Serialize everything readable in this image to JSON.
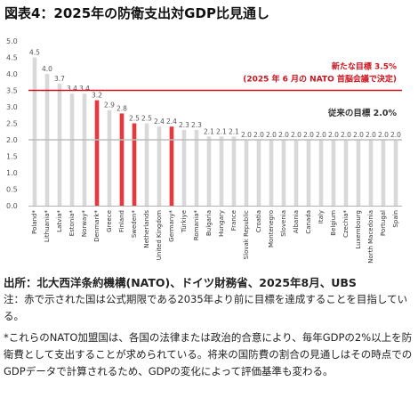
{
  "title": "図表4：2025年の防衛支出対GDP比見通し",
  "chart_data": {
    "type": "bar",
    "ylim": [
      0,
      5
    ],
    "yticks": [
      0.0,
      0.5,
      1.0,
      1.5,
      2.0,
      2.5,
      3.0,
      3.5,
      4.0,
      4.5,
      5.0
    ],
    "grid": false,
    "categories": [
      "Poland*",
      "Lithuania*",
      "Latvia*",
      "Estonia*",
      "Norway*",
      "Denmark*",
      "Greece",
      "Finland",
      "Sweden*",
      "Netherlands",
      "United Kingdom",
      "Germany*",
      "Türkiye",
      "Romania*",
      "Bulgaria",
      "Hungary",
      "France",
      "Slovak Republic",
      "Croatia",
      "Montenegro",
      "Slovenia",
      "Albania",
      "Canada",
      "Italy",
      "Belgium",
      "Czechia*",
      "Luxembourg",
      "North Macedonia",
      "Portugal",
      "Spain"
    ],
    "values": [
      4.5,
      4.0,
      3.7,
      3.4,
      3.4,
      3.2,
      2.9,
      2.8,
      2.5,
      2.5,
      2.4,
      2.4,
      2.3,
      2.3,
      2.1,
      2.1,
      2.1,
      2.0,
      2.0,
      2.0,
      2.0,
      2.0,
      2.0,
      2.0,
      2.0,
      2.0,
      2.0,
      2.0,
      2.0,
      2.0
    ],
    "value_labels": [
      "4.5",
      "4.0",
      "3.7",
      "3.4",
      "3.4",
      "3.2",
      "2.9",
      "2.8",
      "2.5",
      "2.5",
      "2.4",
      "2.4",
      "2.3",
      "2.3",
      "2.1",
      "2.1",
      "2.1",
      "2.0",
      "2.0",
      "2.0",
      "2.0",
      "2.0",
      "2.0",
      "2.0",
      "2.0",
      "2.0",
      "2.0",
      "2.0",
      "2.0",
      "2.0"
    ],
    "highlight_indices": [
      5,
      7,
      8,
      11
    ],
    "bar_color": "#d9d9d9",
    "highlight_color": "#e8383d",
    "reference_lines": [
      {
        "value": 3.5,
        "color": "#c9141e",
        "labels": [
          "新たな目標 3.5%",
          "(2025 年 6 月の NATO 首脳会議で決定)"
        ]
      },
      {
        "value": 2.0,
        "color": "#bdbdbd",
        "labels": [
          "従来の目標 2.0%"
        ]
      }
    ]
  },
  "source": "出所：北大西洋条約機構(NATO)、ドイツ財務省、2025年8月、UBS",
  "note1": "注：赤で示された国は公式期限である2035年より前に目標を達成することを目指している。",
  "note2": "*これらのNATO加盟国は、各国の法律または政治的合意により、毎年GDPの2%以上を防衛費として支出することが求められている。将来の国防費の割合の見通しはその時点でのGDPデータで計算されるため、GDPの変化によって評価基準も変わる。"
}
